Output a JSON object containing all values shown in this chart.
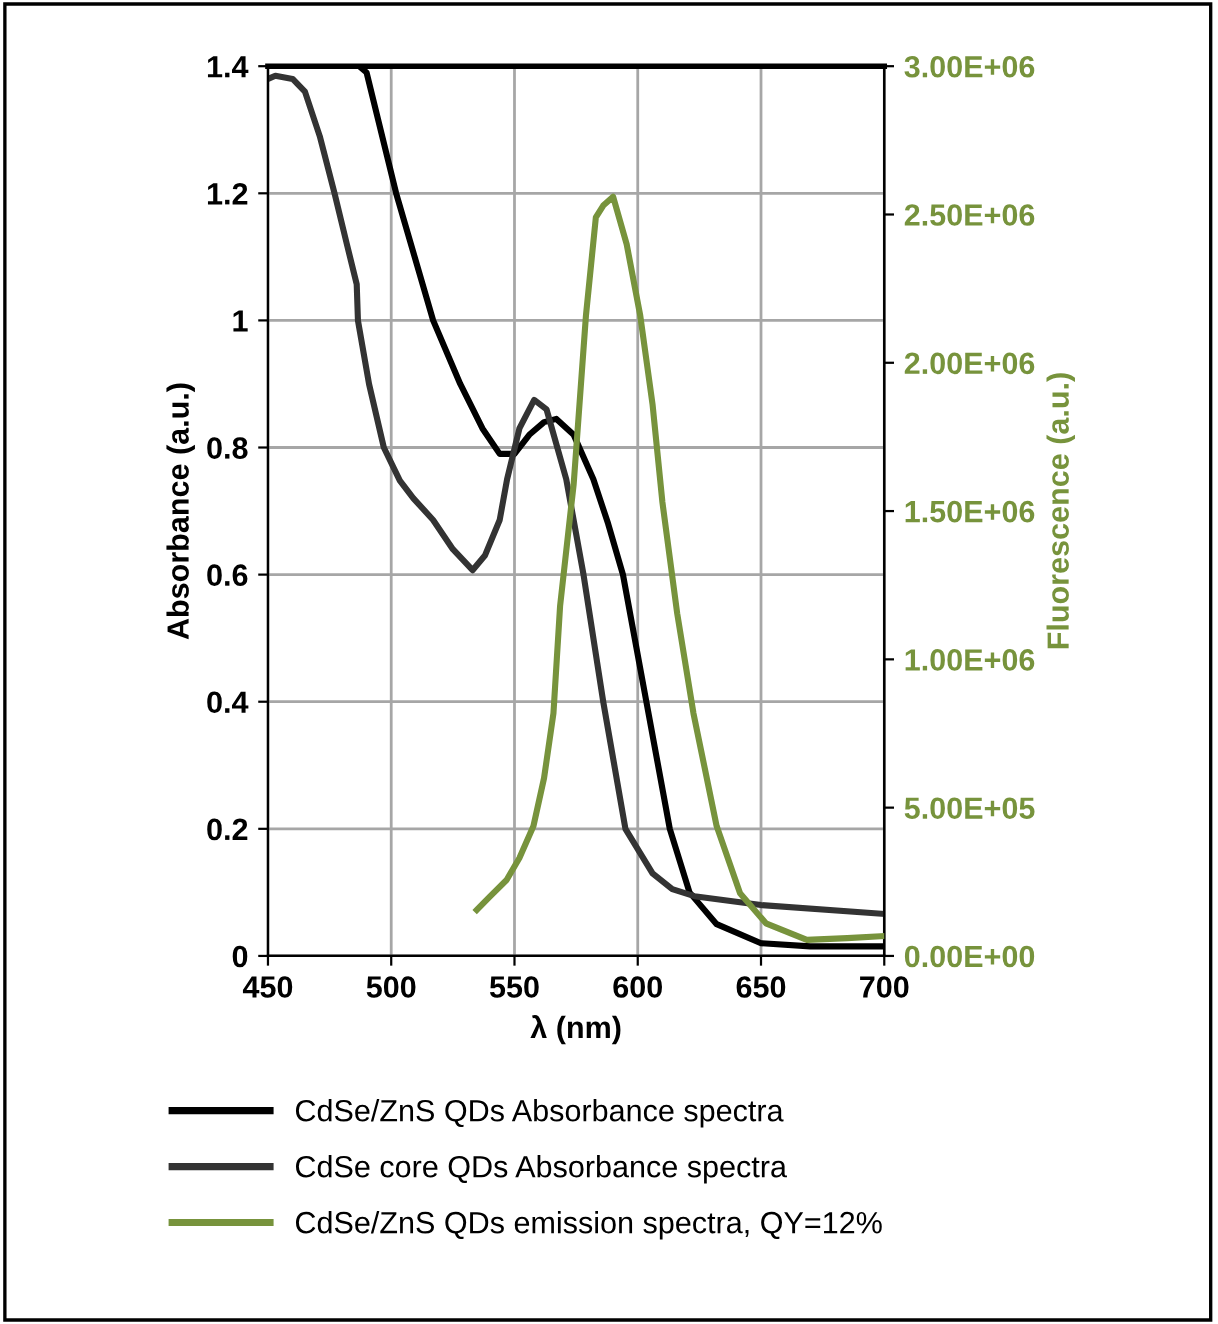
{
  "chart_data": {
    "type": "line",
    "xlabel": "λ (nm)",
    "ylabel": "Absorbance (a.u.)",
    "y2label": "Fluorescence (a.u.)",
    "xlim": [
      450,
      700
    ],
    "xticks": [
      450,
      500,
      550,
      600,
      650,
      700
    ],
    "ylim": [
      0,
      1.4
    ],
    "yticks": [
      0,
      0.2,
      0.4,
      0.6,
      0.8,
      1,
      1.2,
      1.4
    ],
    "y2lim": [
      0,
      3000000
    ],
    "y2ticks": [
      {
        "value": 0,
        "label": "0.00E+00"
      },
      {
        "value": 500000,
        "label": "5.00E+05"
      },
      {
        "value": 1000000,
        "label": "1.00E+06"
      },
      {
        "value": 1500000,
        "label": "1.50E+06"
      },
      {
        "value": 2000000,
        "label": "2.00E+06"
      },
      {
        "value": 2500000,
        "label": "2.50E+06"
      },
      {
        "value": 3000000,
        "label": "3.00E+06"
      }
    ],
    "grid": true,
    "legend": "bottom",
    "marker": "none",
    "line_style": "solid",
    "series": [
      {
        "name": "CdSe/ZnS QDs Absorbance spectra",
        "color": "#000000",
        "x": [
          487,
          490,
          502,
          517,
          528,
          537,
          544,
          550,
          556,
          562,
          567,
          574,
          582,
          588,
          594,
          603.5,
          613,
          621,
          632,
          650,
          670,
          700
        ],
        "values": [
          1.4,
          1.39,
          1.2,
          1.0,
          0.9,
          0.83,
          0.79,
          0.79,
          0.82,
          0.84,
          0.845,
          0.82,
          0.75,
          0.68,
          0.6,
          0.4,
          0.2,
          0.1,
          0.05,
          0.02,
          0.015,
          0.015
        ]
      },
      {
        "name": "CdSe core QDs Absorbance spectra",
        "color": "#333333",
        "x": [
          450,
          453,
          460,
          465,
          471,
          477,
          482,
          486,
          486.5,
          491,
          497,
          503.5,
          509,
          517,
          525,
          533,
          538,
          544,
          547,
          552,
          558,
          563,
          571,
          578,
          586,
          595,
          606,
          614,
          623,
          650,
          700
        ],
        "values": [
          1.38,
          1.385,
          1.38,
          1.36,
          1.29,
          1.2,
          1.12,
          1.057,
          1.0,
          0.9,
          0.8,
          0.748,
          0.72,
          0.686,
          0.64,
          0.607,
          0.63,
          0.686,
          0.75,
          0.83,
          0.875,
          0.86,
          0.75,
          0.6,
          0.4,
          0.2,
          0.13,
          0.105,
          0.094,
          0.08,
          0.066
        ]
      },
      {
        "name": "CdSe/ZnS QDs emission spectra, QY=12%",
        "color": "#77933c",
        "axis": "y2",
        "x": [
          534.7,
          540,
          546.8,
          552,
          557.7,
          562,
          565.8,
          568.5,
          574,
          579,
          583,
          586,
          590,
          595.5,
          601,
          606,
          610,
          616,
          622.6,
          632,
          641.5,
          652,
          668.6,
          685,
          700
        ],
        "values": [
          155000,
          200000,
          256000,
          330000,
          438000,
          600000,
          818000,
          1180000,
          1590000,
          2160000,
          2490000,
          2530000,
          2560000,
          2400000,
          2160000,
          1860000,
          1530000,
          1155000,
          818000,
          438000,
          211000,
          110000,
          54000,
          60000,
          67000
        ]
      }
    ]
  }
}
